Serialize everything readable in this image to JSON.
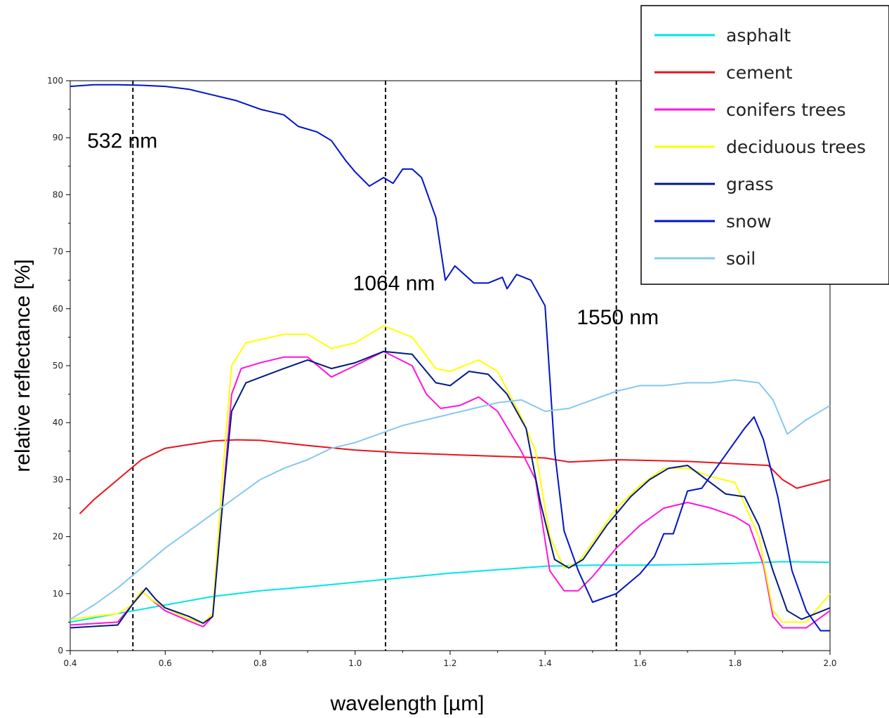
{
  "chart_data": {
    "type": "line",
    "xlabel": "wavelength [µm]",
    "ylabel": "relative reflectance [%]",
    "xlim": [
      0.4,
      2.0
    ],
    "ylim": [
      0,
      100
    ],
    "x_ticks": [
      "0.4",
      "0.6",
      "0.8",
      "1.0",
      "1.2",
      "1.4",
      "1.6",
      "1.8",
      "2.0"
    ],
    "y_ticks": [
      "0",
      "10",
      "20",
      "30",
      "40",
      "50",
      "60",
      "70",
      "80",
      "90",
      "100"
    ],
    "legend_position": "top-right",
    "annotations": [
      {
        "label": "532 nm",
        "x": 0.532
      },
      {
        "label": "1064 nm",
        "x": 1.064
      },
      {
        "label": "1550 nm",
        "x": 1.55
      }
    ],
    "series": [
      {
        "name": "asphalt",
        "color": "#00e5e5",
        "points": [
          [
            0.4,
            5
          ],
          [
            0.5,
            6.5
          ],
          [
            0.6,
            8
          ],
          [
            0.7,
            9.5
          ],
          [
            0.8,
            10.5
          ],
          [
            0.9,
            11.2
          ],
          [
            1.0,
            12
          ],
          [
            1.1,
            12.8
          ],
          [
            1.2,
            13.6
          ],
          [
            1.3,
            14.2
          ],
          [
            1.4,
            14.8
          ],
          [
            1.5,
            15
          ],
          [
            1.6,
            15
          ],
          [
            1.7,
            15.1
          ],
          [
            1.8,
            15.3
          ],
          [
            1.9,
            15.6
          ],
          [
            2.0,
            15.5
          ]
        ]
      },
      {
        "name": "cement",
        "color": "#e8141e",
        "points": [
          [
            0.42,
            24
          ],
          [
            0.45,
            26.5
          ],
          [
            0.5,
            30
          ],
          [
            0.55,
            33.5
          ],
          [
            0.6,
            35.5
          ],
          [
            0.7,
            36.8
          ],
          [
            0.75,
            37
          ],
          [
            0.8,
            36.9
          ],
          [
            0.9,
            36
          ],
          [
            1.0,
            35.2
          ],
          [
            1.1,
            34.7
          ],
          [
            1.2,
            34.4
          ],
          [
            1.3,
            34.1
          ],
          [
            1.4,
            33.8
          ],
          [
            1.45,
            33.1
          ],
          [
            1.55,
            33.5
          ],
          [
            1.6,
            33.4
          ],
          [
            1.7,
            33.2
          ],
          [
            1.8,
            32.8
          ],
          [
            1.87,
            32.5
          ],
          [
            1.9,
            30
          ],
          [
            1.93,
            28.5
          ],
          [
            2.0,
            30
          ]
        ]
      },
      {
        "name": "conifers trees",
        "color": "#ff14dc",
        "points": [
          [
            0.4,
            4.5
          ],
          [
            0.5,
            5
          ],
          [
            0.53,
            8
          ],
          [
            0.55,
            10.5
          ],
          [
            0.57,
            9
          ],
          [
            0.6,
            7
          ],
          [
            0.65,
            5.2
          ],
          [
            0.68,
            4.2
          ],
          [
            0.7,
            6
          ],
          [
            0.72,
            25
          ],
          [
            0.74,
            45
          ],
          [
            0.76,
            49.5
          ],
          [
            0.8,
            50.5
          ],
          [
            0.85,
            51.5
          ],
          [
            0.9,
            51.5
          ],
          [
            0.95,
            48
          ],
          [
            1.0,
            50
          ],
          [
            1.06,
            52.5
          ],
          [
            1.12,
            50
          ],
          [
            1.15,
            45
          ],
          [
            1.18,
            42.5
          ],
          [
            1.22,
            43
          ],
          [
            1.26,
            44.5
          ],
          [
            1.3,
            42
          ],
          [
            1.35,
            35
          ],
          [
            1.38,
            30
          ],
          [
            1.41,
            14
          ],
          [
            1.44,
            10.5
          ],
          [
            1.47,
            10.5
          ],
          [
            1.5,
            13
          ],
          [
            1.55,
            18
          ],
          [
            1.6,
            22
          ],
          [
            1.65,
            25
          ],
          [
            1.7,
            26
          ],
          [
            1.75,
            25
          ],
          [
            1.8,
            23.5
          ],
          [
            1.83,
            22
          ],
          [
            1.86,
            15
          ],
          [
            1.88,
            6
          ],
          [
            1.9,
            4
          ],
          [
            1.95,
            4
          ],
          [
            2.0,
            7
          ]
        ]
      },
      {
        "name": "deciduous trees",
        "color": "#ffff00",
        "points": [
          [
            0.4,
            5.5
          ],
          [
            0.5,
            6.5
          ],
          [
            0.53,
            8
          ],
          [
            0.55,
            10.5
          ],
          [
            0.57,
            9
          ],
          [
            0.6,
            7.5
          ],
          [
            0.65,
            5.5
          ],
          [
            0.68,
            4.8
          ],
          [
            0.7,
            6.5
          ],
          [
            0.72,
            30
          ],
          [
            0.74,
            50
          ],
          [
            0.77,
            54
          ],
          [
            0.85,
            55.5
          ],
          [
            0.9,
            55.5
          ],
          [
            0.95,
            53
          ],
          [
            1.0,
            54
          ],
          [
            1.06,
            57
          ],
          [
            1.12,
            55
          ],
          [
            1.17,
            49.5
          ],
          [
            1.2,
            49
          ],
          [
            1.26,
            51
          ],
          [
            1.3,
            49
          ],
          [
            1.35,
            41
          ],
          [
            1.38,
            35
          ],
          [
            1.41,
            20
          ],
          [
            1.44,
            14.5
          ],
          [
            1.47,
            15.5
          ],
          [
            1.5,
            19
          ],
          [
            1.55,
            25
          ],
          [
            1.6,
            29
          ],
          [
            1.65,
            32
          ],
          [
            1.7,
            32
          ],
          [
            1.75,
            30.5
          ],
          [
            1.8,
            29.5
          ],
          [
            1.85,
            20
          ],
          [
            1.88,
            7
          ],
          [
            1.9,
            5
          ],
          [
            1.95,
            5
          ],
          [
            2.0,
            10
          ]
        ]
      },
      {
        "name": "grass",
        "color": "#001a80",
        "points": [
          [
            0.4,
            4
          ],
          [
            0.5,
            4.5
          ],
          [
            0.53,
            8
          ],
          [
            0.56,
            11
          ],
          [
            0.58,
            9
          ],
          [
            0.6,
            7.5
          ],
          [
            0.65,
            6
          ],
          [
            0.68,
            4.8
          ],
          [
            0.7,
            6
          ],
          [
            0.72,
            25
          ],
          [
            0.74,
            42
          ],
          [
            0.77,
            47
          ],
          [
            0.85,
            49.5
          ],
          [
            0.9,
            51
          ],
          [
            0.95,
            49.5
          ],
          [
            1.0,
            50.5
          ],
          [
            1.06,
            52.5
          ],
          [
            1.12,
            52
          ],
          [
            1.17,
            47
          ],
          [
            1.2,
            46.5
          ],
          [
            1.24,
            49
          ],
          [
            1.28,
            48.5
          ],
          [
            1.32,
            45
          ],
          [
            1.36,
            39
          ],
          [
            1.39,
            26
          ],
          [
            1.42,
            16
          ],
          [
            1.45,
            14.5
          ],
          [
            1.48,
            16
          ],
          [
            1.53,
            22
          ],
          [
            1.58,
            27
          ],
          [
            1.62,
            30
          ],
          [
            1.66,
            32
          ],
          [
            1.7,
            32.5
          ],
          [
            1.74,
            30
          ],
          [
            1.78,
            27.5
          ],
          [
            1.82,
            27
          ],
          [
            1.85,
            22
          ],
          [
            1.88,
            14
          ],
          [
            1.91,
            7
          ],
          [
            1.94,
            5.5
          ],
          [
            2.0,
            7.5
          ]
        ]
      },
      {
        "name": "snow",
        "color": "#0014c8",
        "points": [
          [
            0.4,
            99
          ],
          [
            0.45,
            99.3
          ],
          [
            0.5,
            99.3
          ],
          [
            0.55,
            99.2
          ],
          [
            0.6,
            99
          ],
          [
            0.65,
            98.5
          ],
          [
            0.7,
            97.5
          ],
          [
            0.75,
            96.5
          ],
          [
            0.8,
            95
          ],
          [
            0.85,
            94
          ],
          [
            0.88,
            92
          ],
          [
            0.92,
            91
          ],
          [
            0.95,
            89.5
          ],
          [
            0.98,
            86
          ],
          [
            1.0,
            84
          ],
          [
            1.03,
            81.5
          ],
          [
            1.06,
            83
          ],
          [
            1.08,
            82
          ],
          [
            1.1,
            84.5
          ],
          [
            1.12,
            84.5
          ],
          [
            1.14,
            83
          ],
          [
            1.17,
            76
          ],
          [
            1.19,
            65
          ],
          [
            1.21,
            67.5
          ],
          [
            1.25,
            64.5
          ],
          [
            1.28,
            64.5
          ],
          [
            1.31,
            65.5
          ],
          [
            1.32,
            63.5
          ],
          [
            1.34,
            66
          ],
          [
            1.37,
            65
          ],
          [
            1.4,
            60.5
          ],
          [
            1.42,
            35
          ],
          [
            1.44,
            21
          ],
          [
            1.47,
            14
          ],
          [
            1.5,
            8.5
          ],
          [
            1.55,
            10
          ],
          [
            1.6,
            13.5
          ],
          [
            1.63,
            16.5
          ],
          [
            1.65,
            20.5
          ],
          [
            1.67,
            20.5
          ],
          [
            1.7,
            28
          ],
          [
            1.73,
            28.5
          ],
          [
            1.76,
            32
          ],
          [
            1.79,
            35.5
          ],
          [
            1.82,
            39
          ],
          [
            1.84,
            41
          ],
          [
            1.86,
            37
          ],
          [
            1.89,
            27
          ],
          [
            1.92,
            14
          ],
          [
            1.95,
            7
          ],
          [
            1.98,
            3.5
          ],
          [
            2.0,
            3.5
          ]
        ]
      },
      {
        "name": "soil",
        "color": "#87c8f0",
        "points": [
          [
            0.4,
            5.5
          ],
          [
            0.45,
            8
          ],
          [
            0.5,
            11
          ],
          [
            0.55,
            14.5
          ],
          [
            0.6,
            18
          ],
          [
            0.65,
            21
          ],
          [
            0.7,
            24
          ],
          [
            0.75,
            27
          ],
          [
            0.8,
            30
          ],
          [
            0.85,
            32
          ],
          [
            0.9,
            33.5
          ],
          [
            0.95,
            35.5
          ],
          [
            1.0,
            36.5
          ],
          [
            1.05,
            38
          ],
          [
            1.1,
            39.5
          ],
          [
            1.15,
            40.5
          ],
          [
            1.2,
            41.5
          ],
          [
            1.25,
            42.5
          ],
          [
            1.3,
            43.5
          ],
          [
            1.35,
            44
          ],
          [
            1.4,
            42
          ],
          [
            1.45,
            42.5
          ],
          [
            1.5,
            44
          ],
          [
            1.55,
            45.5
          ],
          [
            1.6,
            46.5
          ],
          [
            1.65,
            46.5
          ],
          [
            1.7,
            47
          ],
          [
            1.75,
            47
          ],
          [
            1.8,
            47.5
          ],
          [
            1.85,
            47
          ],
          [
            1.88,
            44
          ],
          [
            1.91,
            38
          ],
          [
            1.95,
            40.5
          ],
          [
            2.0,
            43
          ]
        ]
      }
    ]
  }
}
